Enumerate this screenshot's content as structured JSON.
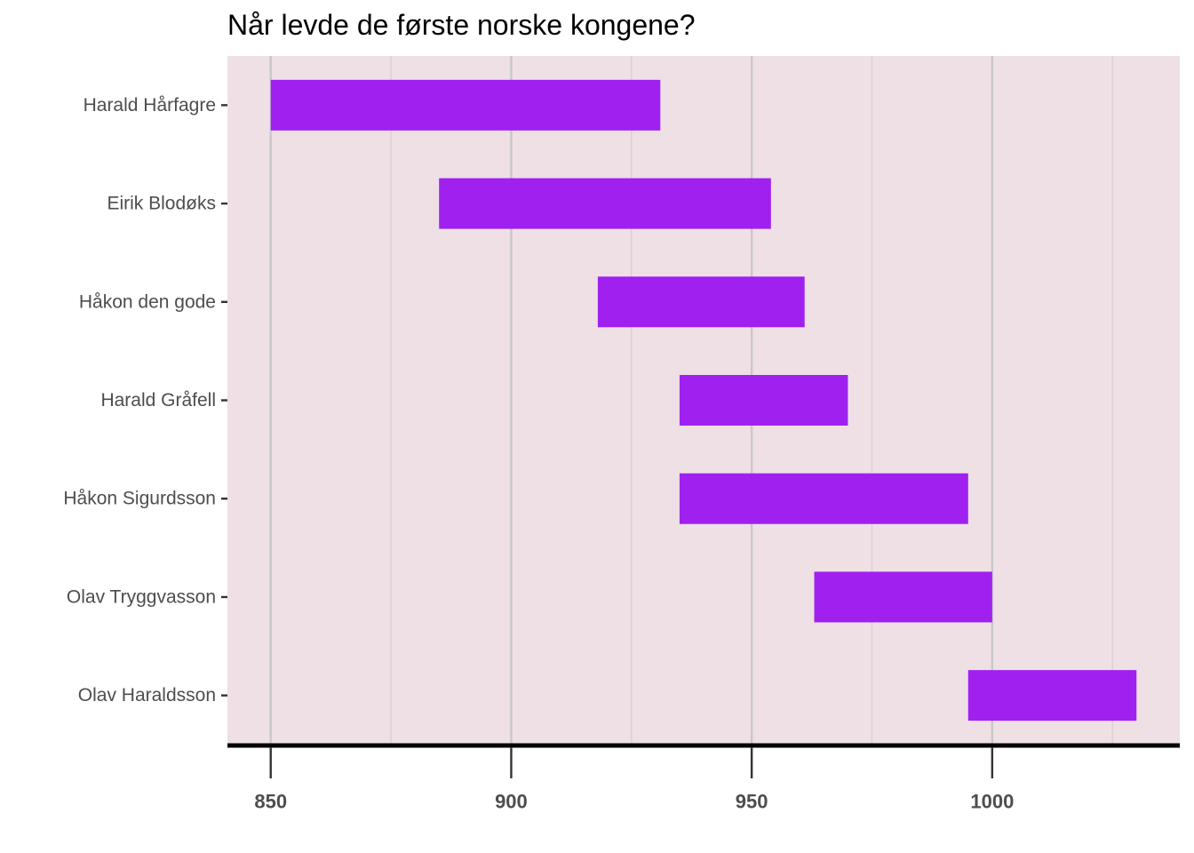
{
  "chart_data": {
    "type": "bar",
    "orientation": "horizontal-range",
    "title": "Når levde de første norske kongene?",
    "xlabel": "",
    "ylabel": "",
    "xlim": [
      841,
      1039
    ],
    "x_ticks": [
      850,
      900,
      950,
      1000
    ],
    "x_minor_ticks": [
      875,
      925,
      975,
      1025
    ],
    "categories": [
      "Harald Hårfagre",
      "Eirik Blodøks",
      "Håkon den gode",
      "Harald Gråfell",
      "Håkon Sigurdsson",
      "Olav Tryggvasson",
      "Olav Haraldsson"
    ],
    "ranges": [
      [
        850,
        931
      ],
      [
        885,
        954
      ],
      [
        918,
        961
      ],
      [
        935,
        970
      ],
      [
        935,
        995
      ],
      [
        963,
        1000
      ],
      [
        995,
        1030
      ]
    ],
    "grid": true,
    "legend": "none",
    "colors": {
      "bar": "#a020f0",
      "panel_background": "#eee0e5",
      "major_grid": "#c8c8c8",
      "minor_grid": "#d8cdd1",
      "axis_line": "#000000",
      "tick_mark": "#333333",
      "label_text": "#4d4d4d"
    }
  }
}
